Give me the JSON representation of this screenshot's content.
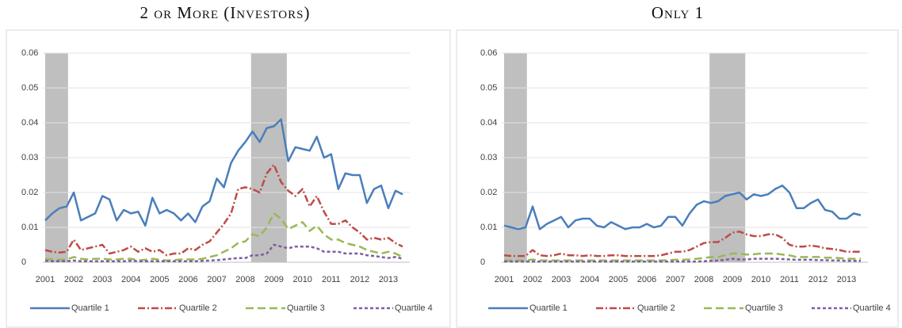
{
  "chart_data": [
    {
      "type": "line",
      "title": "2 or More (Investors)",
      "x": [
        2001,
        2001.25,
        2001.5,
        2001.75,
        2002,
        2002.25,
        2002.5,
        2002.75,
        2003,
        2003.25,
        2003.5,
        2003.75,
        2004,
        2004.25,
        2004.5,
        2004.75,
        2005,
        2005.25,
        2005.5,
        2005.75,
        2006,
        2006.25,
        2006.5,
        2006.75,
        2007,
        2007.25,
        2007.5,
        2007.75,
        2008,
        2008.25,
        2008.5,
        2008.75,
        2009,
        2009.25,
        2009.5,
        2009.75,
        2010,
        2010.25,
        2010.5,
        2010.75,
        2011,
        2011.25,
        2011.5,
        2011.75,
        2012,
        2012.25,
        2012.5,
        2012.75,
        2013,
        2013.25,
        2013.5
      ],
      "xlim": [
        2001,
        2013.75
      ],
      "xticks": [
        2001,
        2002,
        2003,
        2004,
        2005,
        2006,
        2007,
        2008,
        2009,
        2010,
        2011,
        2012,
        2013
      ],
      "ylim": [
        0,
        0.06
      ],
      "yticks": [
        0,
        0.01,
        0.02,
        0.03,
        0.04,
        0.05,
        0.06
      ],
      "grid": true,
      "legend": "bottom",
      "shading": [
        [
          2001,
          2001.8
        ],
        [
          2008.2,
          2009.45
        ]
      ],
      "series": [
        {
          "name": "Quartile 1",
          "color": "#4a7ebb",
          "style": "solid",
          "values": [
            0.012,
            0.014,
            0.0155,
            0.016,
            0.02,
            0.012,
            0.013,
            0.014,
            0.019,
            0.018,
            0.012,
            0.015,
            0.014,
            0.0145,
            0.0105,
            0.0185,
            0.014,
            0.015,
            0.014,
            0.012,
            0.014,
            0.0115,
            0.016,
            0.0175,
            0.024,
            0.0215,
            0.0285,
            0.032,
            0.0345,
            0.0375,
            0.0345,
            0.0385,
            0.039,
            0.041,
            0.029,
            0.033,
            0.0325,
            0.032,
            0.036,
            0.03,
            0.031,
            0.021,
            0.0255,
            0.025,
            0.025,
            0.017,
            0.021,
            0.022,
            0.0155,
            0.0205,
            0.0195
          ]
        },
        {
          "name": "Quartile 2",
          "color": "#be4b48",
          "style": "dashdot",
          "values": [
            0.0035,
            0.003,
            0.0028,
            0.003,
            0.0065,
            0.0035,
            0.004,
            0.0045,
            0.005,
            0.0025,
            0.003,
            0.0035,
            0.0045,
            0.003,
            0.004,
            0.003,
            0.0035,
            0.002,
            0.0025,
            0.0025,
            0.004,
            0.0035,
            0.005,
            0.006,
            0.0085,
            0.011,
            0.014,
            0.021,
            0.0215,
            0.021,
            0.02,
            0.0255,
            0.028,
            0.023,
            0.0205,
            0.019,
            0.021,
            0.016,
            0.019,
            0.0145,
            0.011,
            0.011,
            0.012,
            0.01,
            0.0085,
            0.0065,
            0.007,
            0.0065,
            0.007,
            0.0055,
            0.0045
          ]
        },
        {
          "name": "Quartile 3",
          "color": "#98b954",
          "style": "longdash",
          "values": [
            0.001,
            0.0008,
            0.0007,
            0.0008,
            0.0015,
            0.001,
            0.0008,
            0.001,
            0.001,
            0.0008,
            0.0008,
            0.001,
            0.001,
            0.0005,
            0.0007,
            0.001,
            0.0007,
            0.0005,
            0.0006,
            0.0008,
            0.0008,
            0.0008,
            0.001,
            0.0015,
            0.002,
            0.003,
            0.004,
            0.0055,
            0.006,
            0.008,
            0.0075,
            0.01,
            0.014,
            0.0125,
            0.0095,
            0.0105,
            0.0115,
            0.009,
            0.0105,
            0.008,
            0.0065,
            0.0065,
            0.0055,
            0.005,
            0.0045,
            0.0035,
            0.003,
            0.0025,
            0.003,
            0.0025,
            0.0015
          ]
        },
        {
          "name": "Quartile 4",
          "color": "#7d5fa0",
          "style": "shortdash",
          "values": [
            0.0004,
            0.0003,
            0.0003,
            0.0003,
            0.0005,
            0.0003,
            0.0003,
            0.0003,
            0.0003,
            0.0003,
            0.0003,
            0.0003,
            0.0004,
            0.0003,
            0.0003,
            0.0003,
            0.0003,
            0.0003,
            0.0003,
            0.0003,
            0.0003,
            0.0003,
            0.0004,
            0.0005,
            0.0006,
            0.0008,
            0.001,
            0.0012,
            0.0012,
            0.002,
            0.002,
            0.0025,
            0.005,
            0.0045,
            0.004,
            0.0045,
            0.0045,
            0.0045,
            0.004,
            0.003,
            0.003,
            0.003,
            0.0025,
            0.0025,
            0.0025,
            0.002,
            0.0018,
            0.0015,
            0.0012,
            0.0015,
            0.001
          ]
        }
      ]
    },
    {
      "type": "line",
      "title": "Only 1",
      "x": [
        2001,
        2001.25,
        2001.5,
        2001.75,
        2002,
        2002.25,
        2002.5,
        2002.75,
        2003,
        2003.25,
        2003.5,
        2003.75,
        2004,
        2004.25,
        2004.5,
        2004.75,
        2005,
        2005.25,
        2005.5,
        2005.75,
        2006,
        2006.25,
        2006.5,
        2006.75,
        2007,
        2007.25,
        2007.5,
        2007.75,
        2008,
        2008.25,
        2008.5,
        2008.75,
        2009,
        2009.25,
        2009.5,
        2009.75,
        2010,
        2010.25,
        2010.5,
        2010.75,
        2011,
        2011.25,
        2011.5,
        2011.75,
        2012,
        2012.25,
        2012.5,
        2012.75,
        2013,
        2013.25,
        2013.5
      ],
      "xlim": [
        2001,
        2013.75
      ],
      "xticks": [
        2001,
        2002,
        2003,
        2004,
        2005,
        2006,
        2007,
        2008,
        2009,
        2010,
        2011,
        2012,
        2013
      ],
      "ylim": [
        0,
        0.06
      ],
      "yticks": [
        0,
        0.01,
        0.02,
        0.03,
        0.04,
        0.05,
        0.06
      ],
      "grid": true,
      "legend": "bottom",
      "shading": [
        [
          2001,
          2001.8
        ],
        [
          2008.2,
          2009.45
        ]
      ],
      "series": [
        {
          "name": "Quartile 1",
          "color": "#4a7ebb",
          "style": "solid",
          "values": [
            0.0105,
            0.01,
            0.0095,
            0.01,
            0.016,
            0.0095,
            0.011,
            0.012,
            0.013,
            0.01,
            0.012,
            0.0125,
            0.0125,
            0.0105,
            0.01,
            0.0115,
            0.0105,
            0.0095,
            0.01,
            0.01,
            0.011,
            0.01,
            0.0105,
            0.013,
            0.013,
            0.0105,
            0.014,
            0.0165,
            0.0175,
            0.017,
            0.0175,
            0.019,
            0.0195,
            0.02,
            0.018,
            0.0195,
            0.019,
            0.0195,
            0.021,
            0.022,
            0.02,
            0.0155,
            0.0155,
            0.017,
            0.018,
            0.015,
            0.0145,
            0.0125,
            0.0125,
            0.014,
            0.0135
          ]
        },
        {
          "name": "Quartile 2",
          "color": "#be4b48",
          "style": "dashdot",
          "values": [
            0.002,
            0.0018,
            0.0018,
            0.0018,
            0.0035,
            0.002,
            0.0018,
            0.002,
            0.0025,
            0.002,
            0.002,
            0.0018,
            0.002,
            0.0018,
            0.0018,
            0.002,
            0.002,
            0.0018,
            0.0018,
            0.0018,
            0.0018,
            0.0018,
            0.002,
            0.0025,
            0.003,
            0.003,
            0.0035,
            0.0045,
            0.0055,
            0.0058,
            0.0058,
            0.007,
            0.0085,
            0.0088,
            0.008,
            0.0075,
            0.0075,
            0.008,
            0.008,
            0.007,
            0.005,
            0.0045,
            0.0045,
            0.0048,
            0.0045,
            0.004,
            0.0038,
            0.0035,
            0.003,
            0.003,
            0.003
          ]
        },
        {
          "name": "Quartile 3",
          "color": "#98b954",
          "style": "longdash",
          "values": [
            0.0005,
            0.0005,
            0.0005,
            0.0005,
            0.0008,
            0.0005,
            0.0005,
            0.0005,
            0.0005,
            0.0005,
            0.0005,
            0.0005,
            0.0005,
            0.0005,
            0.0005,
            0.0005,
            0.0005,
            0.0005,
            0.0005,
            0.0005,
            0.0005,
            0.0005,
            0.0005,
            0.0006,
            0.0007,
            0.0007,
            0.0008,
            0.001,
            0.0012,
            0.0015,
            0.0015,
            0.002,
            0.0025,
            0.0025,
            0.0022,
            0.0023,
            0.0025,
            0.0025,
            0.0025,
            0.0022,
            0.002,
            0.0015,
            0.0015,
            0.0015,
            0.0015,
            0.0013,
            0.0013,
            0.0012,
            0.001,
            0.001,
            0.001
          ]
        },
        {
          "name": "Quartile 4",
          "color": "#7d5fa0",
          "style": "shortdash",
          "values": [
            0.0002,
            0.0002,
            0.0002,
            0.0002,
            0.0002,
            0.0002,
            0.0002,
            0.0002,
            0.0002,
            0.0002,
            0.0002,
            0.0002,
            0.0002,
            0.0002,
            0.0002,
            0.0002,
            0.0002,
            0.0002,
            0.0002,
            0.0002,
            0.0002,
            0.0002,
            0.0002,
            0.0002,
            0.0002,
            0.0002,
            0.0002,
            0.0002,
            0.0003,
            0.0004,
            0.0005,
            0.0007,
            0.001,
            0.0008,
            0.0008,
            0.001,
            0.001,
            0.001,
            0.001,
            0.0009,
            0.0008,
            0.0007,
            0.0007,
            0.0007,
            0.0006,
            0.0006,
            0.0005,
            0.0005,
            0.0004,
            0.0004,
            0.0004
          ]
        }
      ]
    }
  ]
}
